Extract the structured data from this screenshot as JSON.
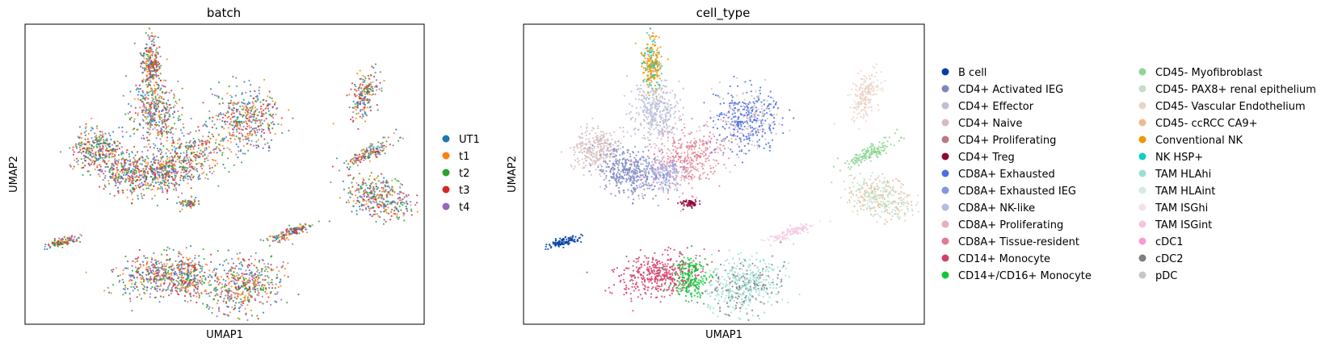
{
  "chart_data": [
    {
      "type": "scatter",
      "title": "batch",
      "xlabel": "UMAP1",
      "ylabel": "UMAP2",
      "grid": false,
      "legend_position": "right",
      "series": [
        {
          "name": "UT1",
          "color": "#1f77b4"
        },
        {
          "name": "t1",
          "color": "#ff7f0e"
        },
        {
          "name": "t2",
          "color": "#2ca02c"
        },
        {
          "name": "t3",
          "color": "#d62728"
        },
        {
          "name": "t4",
          "color": "#9467bd"
        }
      ]
    },
    {
      "type": "scatter",
      "title": "cell_type",
      "xlabel": "UMAP1",
      "ylabel": "UMAP2",
      "grid": false,
      "legend_position": "right",
      "series": [
        {
          "name": "B cell",
          "color": "#023fa5"
        },
        {
          "name": "CD4+ Activated IEG",
          "color": "#7d87b9"
        },
        {
          "name": "CD4+ Effector",
          "color": "#bec1d4"
        },
        {
          "name": "CD4+ Naive",
          "color": "#d6bcc0"
        },
        {
          "name": "CD4+ Proliferating",
          "color": "#bb7784"
        },
        {
          "name": "CD4+ Treg",
          "color": "#8e063b"
        },
        {
          "name": "CD8A+ Exhausted",
          "color": "#4a6fe3"
        },
        {
          "name": "CD8A+ Exhausted IEG",
          "color": "#8595e1"
        },
        {
          "name": "CD8A+ NK-like",
          "color": "#b5bbe3"
        },
        {
          "name": "CD8A+ Proliferating",
          "color": "#e6afb9"
        },
        {
          "name": "CD8A+ Tissue-resident",
          "color": "#e07b91"
        },
        {
          "name": "CD14+ Monocyte",
          "color": "#d33f6a"
        },
        {
          "name": "CD14+/CD16+ Monocyte",
          "color": "#11c638"
        },
        {
          "name": "CD45- Myofibroblast",
          "color": "#8dd593"
        },
        {
          "name": "CD45- PAX8+ renal epithelium",
          "color": "#c6dec7"
        },
        {
          "name": "CD45- Vascular Endothelium",
          "color": "#ead3c6"
        },
        {
          "name": "CD45- ccRCC CA9+",
          "color": "#f0b98d"
        },
        {
          "name": "Conventional NK",
          "color": "#ef9708"
        },
        {
          "name": "NK HSP+",
          "color": "#0fcfc0"
        },
        {
          "name": "TAM HLAhi",
          "color": "#9cded6"
        },
        {
          "name": "TAM HLAint",
          "color": "#d5eae7"
        },
        {
          "name": "TAM ISGhi",
          "color": "#f3e1eb"
        },
        {
          "name": "TAM ISGint",
          "color": "#f6c4e1"
        },
        {
          "name": "cDC1",
          "color": "#f79cd4"
        },
        {
          "name": "cDC2",
          "color": "#7f7f7f"
        },
        {
          "name": "pDC",
          "color": "#c7c7c7"
        }
      ]
    }
  ]
}
